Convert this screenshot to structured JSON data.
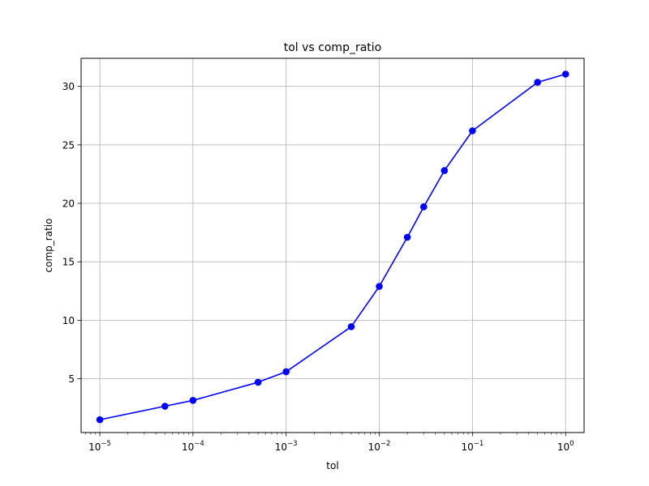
{
  "chart_data": {
    "type": "line",
    "title": "tol vs comp_ratio",
    "xlabel": "tol",
    "ylabel": "comp_ratio",
    "xscale": "log",
    "xlim": [
      6.3e-06,
      1.58
    ],
    "ylim": [
      0.4,
      32.4
    ],
    "grid": true,
    "line_color": "#0000ff",
    "marker": "circle",
    "x_ticks": [
      {
        "value": 1e-05,
        "base": "10",
        "exp": "−5"
      },
      {
        "value": 0.0001,
        "base": "10",
        "exp": "−4"
      },
      {
        "value": 0.001,
        "base": "10",
        "exp": "−3"
      },
      {
        "value": 0.01,
        "base": "10",
        "exp": "−2"
      },
      {
        "value": 0.1,
        "base": "10",
        "exp": "−1"
      },
      {
        "value": 1,
        "base": "10",
        "exp": "0"
      }
    ],
    "y_ticks": [
      {
        "value": 5,
        "label": "5"
      },
      {
        "value": 10,
        "label": "10"
      },
      {
        "value": 15,
        "label": "15"
      },
      {
        "value": 20,
        "label": "20"
      },
      {
        "value": 25,
        "label": "25"
      },
      {
        "value": 30,
        "label": "30"
      }
    ],
    "series": [
      {
        "x": [
          1e-05,
          5e-05,
          0.0001,
          0.0005,
          0.001,
          0.005,
          0.01,
          0.02,
          0.03,
          0.05,
          0.1,
          0.5,
          1
        ],
        "y": [
          1.5,
          2.65,
          3.15,
          4.7,
          5.6,
          9.45,
          12.9,
          17.1,
          19.7,
          22.8,
          26.2,
          30.35,
          31.05
        ]
      }
    ]
  }
}
